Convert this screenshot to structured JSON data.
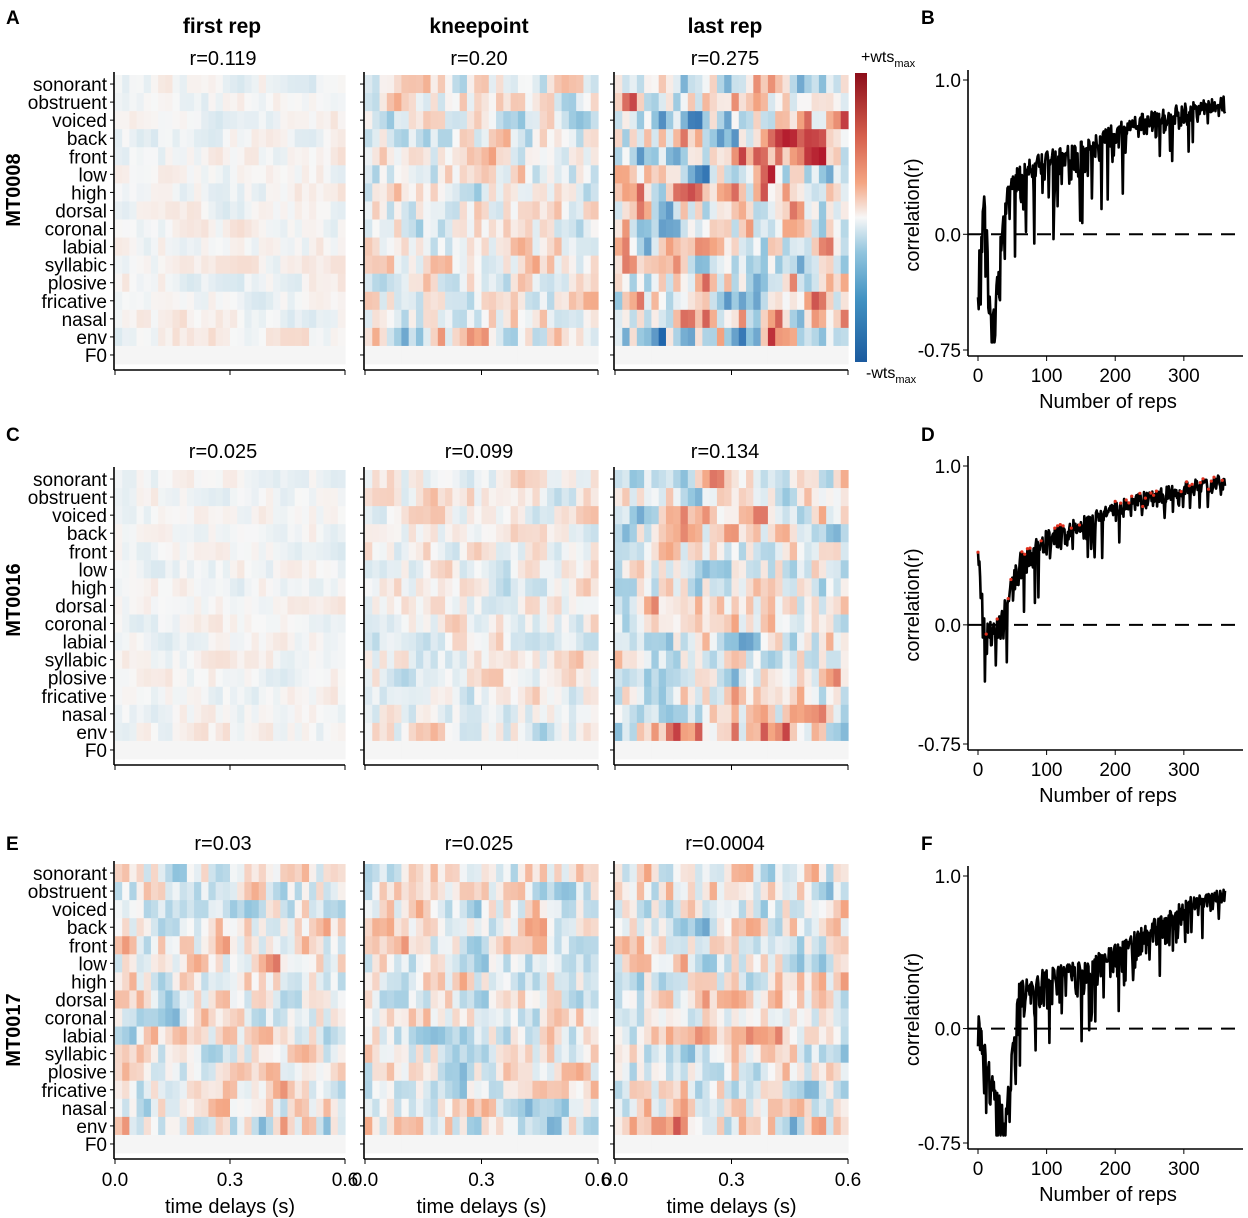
{
  "panel_letters": [
    "A",
    "B",
    "C",
    "D",
    "E",
    "F"
  ],
  "column_titles": [
    "first rep",
    "kneepoint",
    "last rep"
  ],
  "features": [
    "sonorant",
    "obstruent",
    "voiced",
    "back",
    "front",
    "low",
    "high",
    "dorsal",
    "coronal",
    "labial",
    "syllabic",
    "plosive",
    "fricative",
    "nasal",
    "env",
    "F0"
  ],
  "colorbar": {
    "top_label": "+wts",
    "top_sub": "max",
    "bottom_label": "-wts",
    "bottom_sub": "max",
    "high_color": "#8c0d1a",
    "mid_color": "#f7f7f7",
    "low_color": "#1b5a9e"
  },
  "colors": {
    "line": "#000000",
    "marker": "#e0301e",
    "zero_line": "#000000"
  },
  "chart_data": [
    {
      "type": "heatmap",
      "subject": "MT0008",
      "x_ticks": [
        "0.0",
        "0.3",
        "0.6"
      ],
      "xlabel": "time delays (s)",
      "heatmaps": [
        {
          "column": "first rep",
          "r_label": "r=0.119",
          "scale": 0.14,
          "seed": 11
        },
        {
          "column": "kneepoint",
          "r_label": "r=0.20",
          "scale": 0.45,
          "seed": 23
        },
        {
          "column": "last rep",
          "r_label": "r=0.275",
          "scale": 0.8,
          "seed": 37
        }
      ],
      "line_panel": {
        "type": "line",
        "xlabel": "Number of reps",
        "ylabel": "correlation(r)",
        "x_ticks": [
          "0",
          "100",
          "200",
          "300"
        ],
        "y_ticks": [
          "1.0",
          "0.0",
          "-0.75"
        ],
        "xlim": [
          0,
          360
        ],
        "ylim": [
          -0.75,
          1.0
        ],
        "markers": false,
        "keypoints": [
          [
            0,
            -0.2
          ],
          [
            10,
            0.3
          ],
          [
            20,
            -0.6
          ],
          [
            40,
            0.3
          ],
          [
            60,
            0.45
          ],
          [
            100,
            0.55
          ],
          [
            150,
            0.6
          ],
          [
            200,
            0.72
          ],
          [
            250,
            0.8
          ],
          [
            300,
            0.85
          ],
          [
            360,
            0.9
          ]
        ],
        "spread": 0.35,
        "seed": 5
      }
    },
    {
      "type": "heatmap",
      "subject": "MT0016",
      "x_ticks": [
        "0.0",
        "0.3",
        "0.6"
      ],
      "xlabel": "time delays (s)",
      "heatmaps": [
        {
          "column": "first rep",
          "r_label": "r=0.025",
          "scale": 0.12,
          "seed": 41
        },
        {
          "column": "kneepoint",
          "r_label": "r=0.099",
          "scale": 0.3,
          "seed": 53
        },
        {
          "column": "last rep",
          "r_label": "r=0.134",
          "scale": 0.6,
          "seed": 67
        }
      ],
      "line_panel": {
        "type": "line",
        "xlabel": "Number of reps",
        "ylabel": "correlation(r)",
        "x_ticks": [
          "0",
          "100",
          "200",
          "300"
        ],
        "y_ticks": [
          "1.0",
          "0.0",
          "-0.75"
        ],
        "xlim": [
          0,
          360
        ],
        "ylim": [
          -0.75,
          1.0
        ],
        "markers": true,
        "keypoints": [
          [
            0,
            0.5
          ],
          [
            10,
            0.0
          ],
          [
            30,
            0.05
          ],
          [
            60,
            0.45
          ],
          [
            100,
            0.6
          ],
          [
            150,
            0.68
          ],
          [
            200,
            0.78
          ],
          [
            250,
            0.85
          ],
          [
            300,
            0.9
          ],
          [
            360,
            0.95
          ]
        ],
        "spread": 0.22,
        "seed": 9
      }
    },
    {
      "type": "heatmap",
      "subject": "MT0017",
      "x_ticks": [
        "0.0",
        "0.3",
        "0.6"
      ],
      "xlabel": "time delays (s)",
      "heatmaps": [
        {
          "column": "first rep",
          "r_label": "r=0.03",
          "scale": 0.5,
          "seed": 71
        },
        {
          "column": "kneepoint",
          "r_label": "r=0.025",
          "scale": 0.5,
          "seed": 83
        },
        {
          "column": "last rep",
          "r_label": "r=0.0004",
          "scale": 0.55,
          "seed": 97
        }
      ],
      "line_panel": {
        "type": "line",
        "xlabel": "Number of reps",
        "ylabel": "correlation(r)",
        "x_ticks": [
          "0",
          "100",
          "200",
          "300"
        ],
        "y_ticks": [
          "1.0",
          "0.0",
          "-0.75"
        ],
        "xlim": [
          0,
          360
        ],
        "ylim": [
          -0.75,
          1.0
        ],
        "markers": false,
        "keypoints": [
          [
            0,
            0.1
          ],
          [
            20,
            -0.3
          ],
          [
            40,
            -0.55
          ],
          [
            60,
            0.3
          ],
          [
            100,
            0.4
          ],
          [
            150,
            0.45
          ],
          [
            200,
            0.55
          ],
          [
            250,
            0.7
          ],
          [
            300,
            0.85
          ],
          [
            360,
            0.93
          ]
        ],
        "spread": 0.35,
        "seed": 13
      }
    }
  ]
}
